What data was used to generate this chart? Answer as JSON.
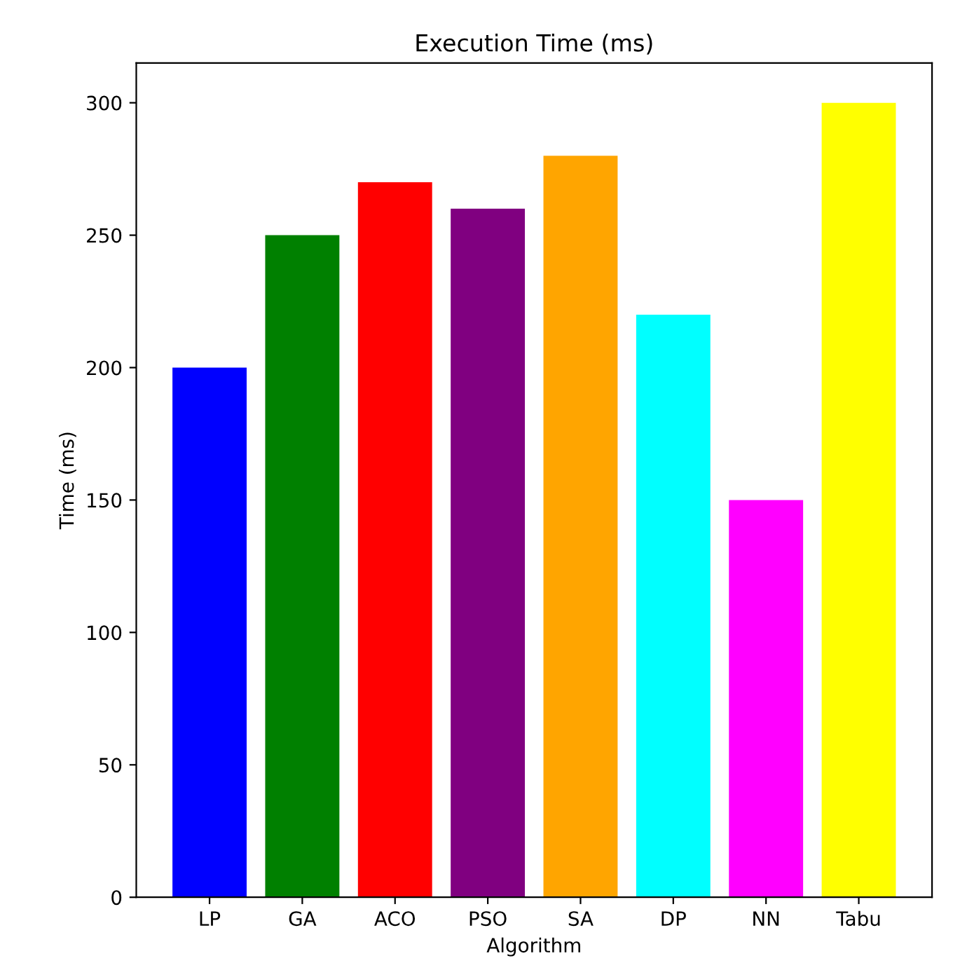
{
  "chart_data": {
    "type": "bar",
    "title": "Execution Time (ms)",
    "xlabel": "Algorithm",
    "ylabel": "Time (ms)",
    "categories": [
      "LP",
      "GA",
      "ACO",
      "PSO",
      "SA",
      "DP",
      "NN",
      "Tabu"
    ],
    "values": [
      200,
      250,
      270,
      260,
      280,
      220,
      150,
      300
    ],
    "colors": [
      "#0000ff",
      "#008000",
      "#ff0000",
      "#800080",
      "#ffa500",
      "#00ffff",
      "#ff00ff",
      "#ffff00"
    ],
    "ylim": [
      0,
      315
    ],
    "yticks": [
      0,
      50,
      100,
      150,
      200,
      250,
      300
    ],
    "grid": false
  }
}
